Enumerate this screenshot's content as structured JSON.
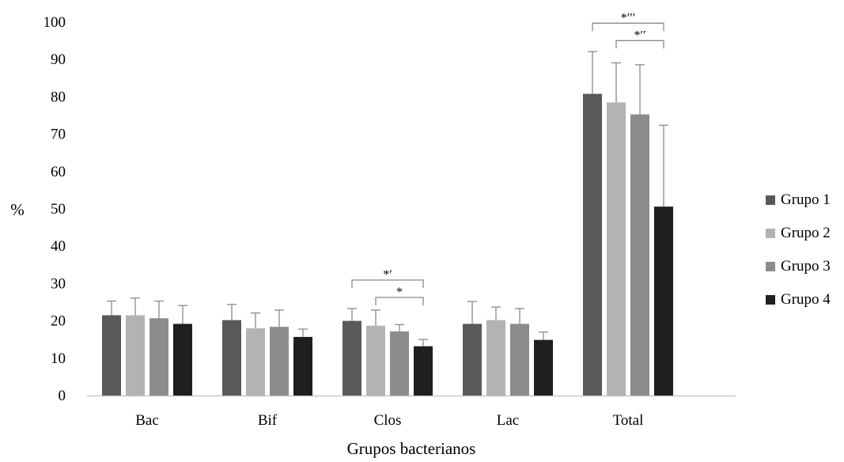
{
  "chart_data": {
    "type": "bar",
    "title": "",
    "xlabel": "Grupos bacterianos",
    "ylabel": "%",
    "ylim": [
      0,
      100
    ],
    "yticks": [
      "0",
      "10",
      "20",
      "30",
      "40",
      "50",
      "60",
      "70",
      "80",
      "90",
      "100"
    ],
    "grid": false,
    "legend_position": "right",
    "categories": [
      "Bac",
      "Bif",
      "Clos",
      "Lac",
      "Total"
    ],
    "series": [
      {
        "name": "Grupo 1",
        "color": "#595959",
        "values": [
          21.5,
          20.2,
          20.0,
          19.2,
          80.8
        ],
        "error": [
          3.8,
          4.2,
          3.3,
          6.0,
          11.3
        ]
      },
      {
        "name": "Grupo 2",
        "color": "#b3b3b3",
        "values": [
          21.5,
          18.0,
          18.7,
          20.2,
          78.5
        ],
        "error": [
          4.6,
          4.1,
          4.2,
          3.5,
          10.6
        ]
      },
      {
        "name": "Grupo 3",
        "color": "#8c8c8c",
        "values": [
          20.7,
          18.4,
          17.2,
          19.2,
          75.3
        ],
        "error": [
          4.6,
          4.5,
          1.8,
          4.1,
          13.3
        ]
      },
      {
        "name": "Grupo 4",
        "color": "#1f1f1f",
        "values": [
          19.2,
          15.7,
          13.2,
          14.9,
          50.6
        ],
        "error": [
          4.9,
          2.1,
          1.8,
          2.1,
          21.8
        ]
      }
    ],
    "annotations": [
      {
        "category": "Clos",
        "from_series": 0,
        "to_series": 3,
        "label": "*′"
      },
      {
        "category": "Clos",
        "from_series": 1,
        "to_series": 3,
        "label": "*"
      },
      {
        "category": "Total",
        "from_series": 0,
        "to_series": 3,
        "label": "*′′′"
      },
      {
        "category": "Total",
        "from_series": 1,
        "to_series": 3,
        "label": "*′′"
      }
    ]
  }
}
